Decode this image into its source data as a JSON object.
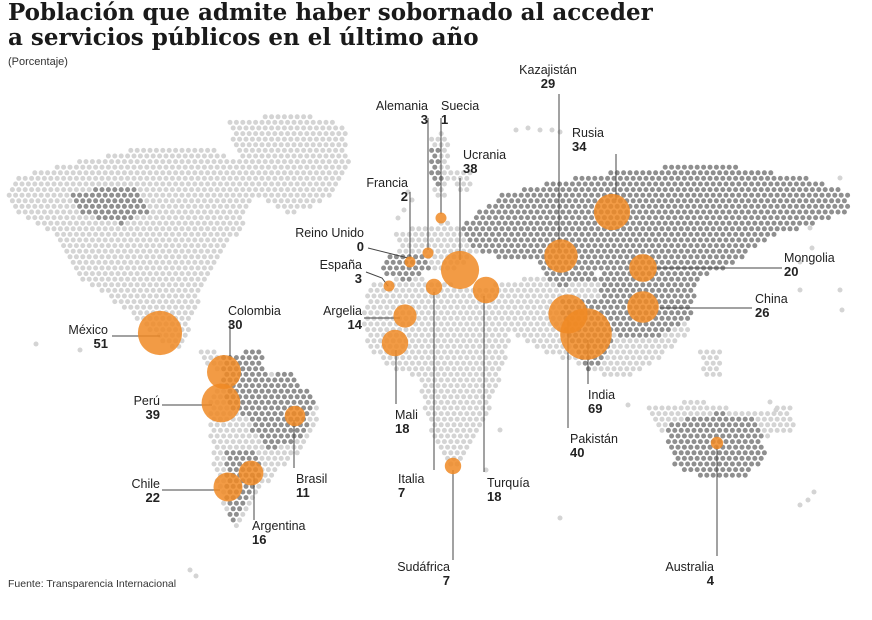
{
  "title_line1": "Población que admite haber sobornado al acceder",
  "title_line2": "a servicios públicos en el último año",
  "subtitle": "(Porcentaje)",
  "source": "Fuente: Transparencia Internacional",
  "colors": {
    "bubble": "#f08a24",
    "land_light": "#d4d4d4",
    "land_dark": "#8f8f8f",
    "leader": "#444444"
  },
  "countries": [
    {
      "name": "México",
      "value": "51"
    },
    {
      "name": "Colombia",
      "value": "30"
    },
    {
      "name": "Perú",
      "value": "39"
    },
    {
      "name": "Chile",
      "value": "22"
    },
    {
      "name": "Argentina",
      "value": "16"
    },
    {
      "name": "Brasil",
      "value": "11"
    },
    {
      "name": "Reino Unido",
      "value": "0"
    },
    {
      "name": "Francia",
      "value": "2"
    },
    {
      "name": "España",
      "value": "3"
    },
    {
      "name": "Alemania",
      "value": "3"
    },
    {
      "name": "Suecia",
      "value": "1"
    },
    {
      "name": "Ucrania",
      "value": "38"
    },
    {
      "name": "Argelia",
      "value": "14"
    },
    {
      "name": "Mali",
      "value": "18"
    },
    {
      "name": "Italia",
      "value": "7"
    },
    {
      "name": "Turquía",
      "value": "18"
    },
    {
      "name": "Sudáfrica",
      "value": "7"
    },
    {
      "name": "Kazajistán",
      "value": "29"
    },
    {
      "name": "Rusia",
      "value": "34"
    },
    {
      "name": "Mongolia",
      "value": "20"
    },
    {
      "name": "China",
      "value": "26"
    },
    {
      "name": "India",
      "value": "69"
    },
    {
      "name": "Pakistán",
      "value": "40"
    },
    {
      "name": "Australia",
      "value": "4"
    }
  ]
}
